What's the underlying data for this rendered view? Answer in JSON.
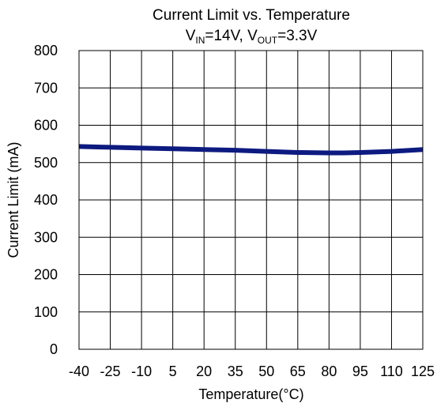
{
  "chart_data": {
    "type": "line",
    "title": "Current Limit vs. Temperature",
    "subtitle": {
      "parts": [
        {
          "text": "V",
          "sub": false
        },
        {
          "text": "IN",
          "sub": true
        },
        {
          "text": "=14V, V",
          "sub": false
        },
        {
          "text": "OUT",
          "sub": true
        },
        {
          "text": "=3.3V",
          "sub": false
        }
      ]
    },
    "xlabel": "Temperature(°C)",
    "ylabel": "Current Limit (mA)",
    "x_ticks": [
      "-40",
      "-25",
      "-10",
      "5",
      "20",
      "35",
      "50",
      "65",
      "80",
      "95",
      "110",
      "125"
    ],
    "y_ticks": [
      "0",
      "100",
      "200",
      "300",
      "400",
      "500",
      "600",
      "700",
      "800"
    ],
    "xlim": [
      -40,
      125
    ],
    "ylim": [
      0,
      800
    ],
    "grid": true,
    "series": [
      {
        "color": "#0d1a80",
        "x": [
          -40,
          -25,
          -10,
          5,
          20,
          35,
          50,
          65,
          80,
          87,
          95,
          110,
          125
        ],
        "y": [
          543,
          541,
          539,
          537,
          535,
          533,
          530,
          527,
          526,
          526,
          527,
          530,
          535
        ]
      }
    ]
  }
}
